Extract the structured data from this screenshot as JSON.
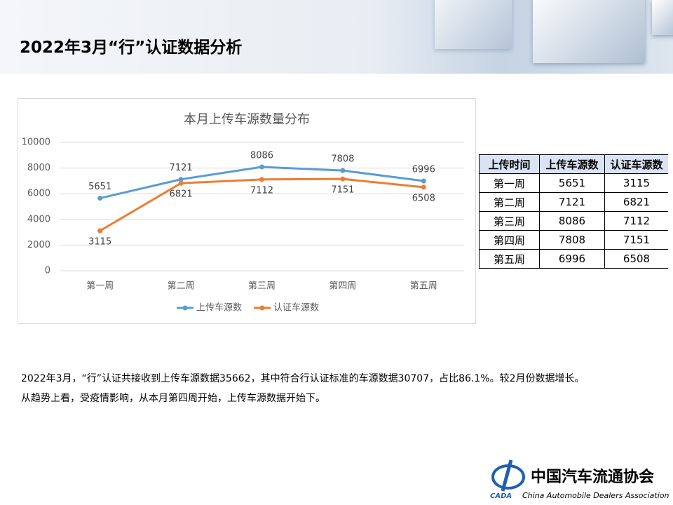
{
  "header": {
    "title": "2022年3月“行”认证数据分析"
  },
  "chart_data": {
    "type": "line",
    "title": "本月上传车源数量分布",
    "categories": [
      "第一周",
      "第二周",
      "第三周",
      "第四周",
      "第五周"
    ],
    "series": [
      {
        "name": "上传车源数",
        "color": "#5b9bd5",
        "values": [
          5651,
          7121,
          8086,
          7808,
          6996
        ]
      },
      {
        "name": "认证车源数",
        "color": "#ed7d31",
        "values": [
          3115,
          6821,
          7112,
          7151,
          6508
        ]
      }
    ],
    "ylim": [
      0,
      10000
    ],
    "yticks": [
      0,
      2000,
      4000,
      6000,
      8000,
      10000
    ],
    "grid": true,
    "legend": "bottom"
  },
  "table": {
    "header": [
      "上传时间",
      "上传车源数",
      "认证车源数"
    ],
    "rows": [
      [
        "第一周",
        "5651",
        "3115"
      ],
      [
        "第二周",
        "7121",
        "6821"
      ],
      [
        "第三周",
        "8086",
        "7112"
      ],
      [
        "第四周",
        "7808",
        "7151"
      ],
      [
        "第五周",
        "6996",
        "6508"
      ]
    ]
  },
  "paragraph": [
    "2022年3月，“行”认证共接收到上传车源数据35662，其中符合行认证标准的车源数据30707，占比86.1%。较2月份数据增长。",
    "从趋势上看，受疫情影响，从本月第四周开始，上传车源数据开始下。"
  ],
  "logo": {
    "mark": "CADA",
    "name": "中国汽车流通协会",
    "english": "China Automobile Dealers Association"
  }
}
